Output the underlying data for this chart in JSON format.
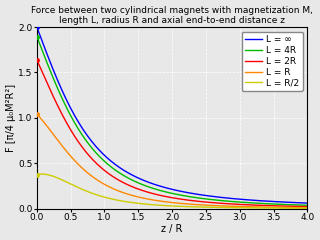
{
  "title": "Force between two cylindrical magnets with magnetization M,\nlength L, radius R and axial end-to-end distance z",
  "xlabel": "z / R",
  "ylabel": "F [π/4 µ₀M²R²]",
  "xlim": [
    0,
    4.0
  ],
  "ylim": [
    0,
    2.0
  ],
  "xticks": [
    0.0,
    0.5,
    1.0,
    1.5,
    2.0,
    2.5,
    3.0,
    3.5,
    4.0
  ],
  "yticks": [
    0.0,
    0.5,
    1.0,
    1.5,
    2.0
  ],
  "series": [
    {
      "label": "L = ∞",
      "color": "#0000ff",
      "L_over_R": 1000000.0
    },
    {
      "label": "L = 4R",
      "color": "#00bb00",
      "L_over_R": 4.0
    },
    {
      "label": "L = 2R",
      "color": "#ff0000",
      "L_over_R": 2.0
    },
    {
      "label": "L = R",
      "color": "#ff8800",
      "L_over_R": 1.0
    },
    {
      "label": "L = R/2",
      "color": "#cccc00",
      "L_over_R": 0.5
    }
  ],
  "background_color": "#e8e8e8",
  "grid_color": "#ffffff",
  "title_fontsize": 6.5,
  "label_fontsize": 7.0,
  "tick_fontsize": 6.5,
  "legend_fontsize": 6.5,
  "linewidth": 1.0,
  "marker_size": 3.0
}
